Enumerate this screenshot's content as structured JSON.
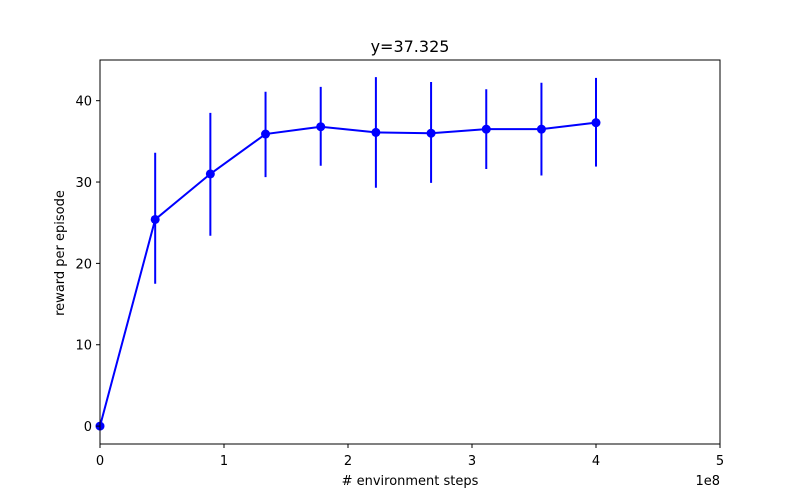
{
  "chart_data": {
    "type": "line",
    "title": "y=37.325",
    "xlabel": "# environment steps",
    "ylabel": "reward per episode",
    "x_offset_label": "1e8",
    "xlim": [
      0,
      5
    ],
    "ylim": [
      -2.2,
      45
    ],
    "x_ticks": [
      0,
      1,
      2,
      3,
      4,
      5
    ],
    "x_tick_labels": [
      "0",
      "1",
      "2",
      "3",
      "4",
      "5"
    ],
    "y_ticks": [
      0,
      10,
      20,
      30,
      40
    ],
    "y_tick_labels": [
      "0",
      "10",
      "20",
      "30",
      "40"
    ],
    "grid": false,
    "series": [
      {
        "color": "#0000ff",
        "marker": "circle",
        "x": [
          0,
          0.445,
          0.89,
          1.335,
          1.78,
          2.225,
          2.67,
          3.115,
          3.56,
          4.0
        ],
        "y": [
          0,
          25.4,
          31.0,
          35.9,
          36.8,
          36.1,
          36.0,
          36.5,
          36.5,
          37.3
        ],
        "err_low": [
          0,
          17.5,
          23.4,
          30.6,
          32.0,
          29.3,
          29.9,
          31.6,
          30.8,
          31.9
        ],
        "err_high": [
          0,
          33.6,
          38.5,
          41.1,
          41.7,
          42.9,
          42.3,
          41.4,
          42.2,
          42.8
        ]
      }
    ]
  }
}
